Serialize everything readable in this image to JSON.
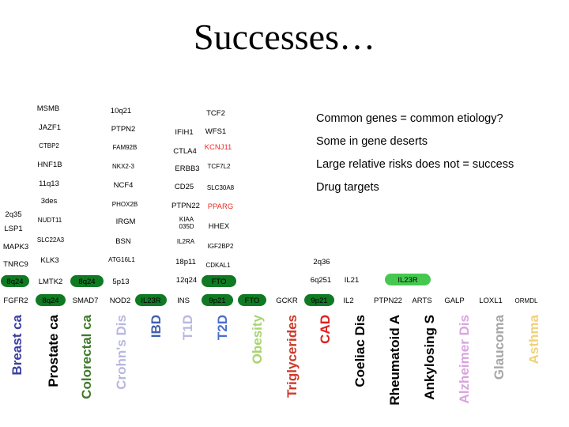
{
  "title": "Successes…",
  "notes": [
    "Common genes = common etiology?",
    "Some in gene deserts",
    "Large relative risks does not = success",
    "Drug targets"
  ],
  "genes": [
    {
      "text": "MSMB",
      "cls": ""
    },
    {
      "text": "10q21",
      "cls": ""
    },
    {
      "text": "TCF2",
      "cls": ""
    },
    {
      "text": "JAZF1",
      "cls": ""
    },
    {
      "text": "PTPN2",
      "cls": ""
    },
    {
      "text": "IFIH1",
      "cls": ""
    },
    {
      "text": "WFS1",
      "cls": ""
    },
    {
      "text": "CTBP2",
      "cls": "small"
    },
    {
      "text": "FAM92B",
      "cls": "small"
    },
    {
      "text": "CTLA4",
      "cls": ""
    },
    {
      "text": "KCNJ11",
      "cls": "red"
    },
    {
      "text": "HNF1B",
      "cls": ""
    },
    {
      "text": "NKX2-3",
      "cls": "small"
    },
    {
      "text": "ERBB3",
      "cls": ""
    },
    {
      "text": "TCF7L2",
      "cls": "small"
    },
    {
      "text": "11q13",
      "cls": ""
    },
    {
      "text": "NCF4",
      "cls": ""
    },
    {
      "text": "CD25",
      "cls": ""
    },
    {
      "text": "SLC30A8",
      "cls": "small"
    },
    {
      "text": "3des",
      "cls": ""
    },
    {
      "text": "2q35",
      "cls": ""
    },
    {
      "text": "PHOX2B",
      "cls": "small"
    },
    {
      "text": "PTPN22",
      "cls": ""
    },
    {
      "text": "PPARG",
      "cls": "red"
    },
    {
      "text": "NUDT11",
      "cls": "small"
    },
    {
      "text": "IRGM",
      "cls": ""
    },
    {
      "text": "KIAA 035D",
      "cls": "wrap"
    },
    {
      "text": "HHEX",
      "cls": ""
    },
    {
      "text": "LSP1",
      "cls": ""
    },
    {
      "text": "SLC22A3",
      "cls": "small"
    },
    {
      "text": "BSN",
      "cls": ""
    },
    {
      "text": "IL2RA",
      "cls": "small"
    },
    {
      "text": "IGF2BP2",
      "cls": "small"
    },
    {
      "text": "MAPK3",
      "cls": ""
    },
    {
      "text": "KLK3",
      "cls": ""
    },
    {
      "text": "ATG16L1",
      "cls": "small"
    },
    {
      "text": "18p11",
      "cls": ""
    },
    {
      "text": "CDKAL1",
      "cls": "small"
    },
    {
      "text": "2q36",
      "cls": ""
    },
    {
      "text": "TNRC9",
      "cls": ""
    },
    {
      "text": "8q24",
      "cls": "green"
    },
    {
      "text": "LMTK2",
      "cls": ""
    },
    {
      "text": "8q24",
      "cls": "green"
    },
    {
      "text": "5p13",
      "cls": ""
    },
    {
      "text": "12q24",
      "cls": ""
    },
    {
      "text": "FTO",
      "cls": "green"
    },
    {
      "text": "6q251",
      "cls": ""
    },
    {
      "text": "IL21",
      "cls": ""
    },
    {
      "text": "IL23R",
      "cls": "lime"
    },
    {
      "text": "FGFR2",
      "cls": ""
    },
    {
      "text": "8q24",
      "cls": "green"
    },
    {
      "text": "SMAD7",
      "cls": ""
    },
    {
      "text": "NOD2",
      "cls": ""
    },
    {
      "text": "IL23R",
      "cls": "green"
    },
    {
      "text": "INS",
      "cls": ""
    },
    {
      "text": "9p21",
      "cls": "green"
    },
    {
      "text": "FTO",
      "cls": "green"
    },
    {
      "text": "GCKR",
      "cls": ""
    },
    {
      "text": "9p21",
      "cls": "green"
    },
    {
      "text": "IL2",
      "cls": ""
    },
    {
      "text": "PTPN22",
      "cls": ""
    },
    {
      "text": "ARTS",
      "cls": ""
    },
    {
      "text": "GALP",
      "cls": ""
    },
    {
      "text": "LOXL1",
      "cls": ""
    },
    {
      "text": "ORMDL",
      "cls": "small"
    }
  ],
  "diseases": [
    {
      "text": "Breast ca",
      "color": "#3a3fa0"
    },
    {
      "text": "Prostate ca",
      "color": "#000000"
    },
    {
      "text": "Colorectal ca",
      "color": "#3f7a2a"
    },
    {
      "text": "Crohn's Dis",
      "color": "#b8b8e0"
    },
    {
      "text": "IBD",
      "color": "#3f5fb0"
    },
    {
      "text": "T1D",
      "color": "#b8b8e0"
    },
    {
      "text": "T2D",
      "color": "#4a6fd0"
    },
    {
      "text": "Obesity",
      "color": "#a7d36f"
    },
    {
      "text": "Triglycerides",
      "color": "#cc3a2a"
    },
    {
      "text": "CAD",
      "color": "#e02020"
    },
    {
      "text": "Coeliac Dis",
      "color": "#000000"
    },
    {
      "text": "Rheumatoid A",
      "color": "#000000"
    },
    {
      "text": "Ankylosing S",
      "color": "#000000"
    },
    {
      "text": "Alzheimer Dis",
      "color": "#d9a4df"
    },
    {
      "text": "Glaucoma",
      "color": "#a6a6a6"
    },
    {
      "text": "Asthma",
      "color": "#f0d27a"
    }
  ]
}
